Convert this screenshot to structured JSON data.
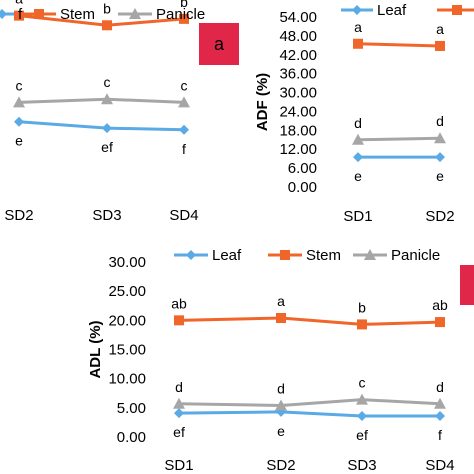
{
  "colors": {
    "leaf": "#5aaae6",
    "stem": "#f0652a",
    "panicle": "#a6a6a6",
    "badge": "#e0274a"
  },
  "chart_data": [
    {
      "type": "line",
      "panel": "top-left (cropped)",
      "categories": [
        "SD2",
        "SD3",
        "SD4"
      ],
      "legend": [
        "f",
        "Stem",
        "Panicle"
      ],
      "ylim": [
        0,
        56
      ],
      "badge": "a",
      "series": [
        {
          "name": "Stem",
          "values": [
            53,
            50,
            52
          ],
          "labels": [
            "a",
            "b",
            "b"
          ]
        },
        {
          "name": "Panicle",
          "values": [
            26,
            27,
            26
          ],
          "labels": [
            "c",
            "c",
            "c"
          ]
        },
        {
          "name": "Leaf",
          "values": [
            20,
            18,
            17.5
          ],
          "labels": [
            "e",
            "ef",
            "f"
          ]
        }
      ]
    },
    {
      "type": "line",
      "panel": "top-right (cropped)",
      "categories": [
        "SD1",
        "SD2"
      ],
      "legend": [
        "Leaf",
        ""
      ],
      "ylabel": "ADF (%)",
      "ylim": [
        0,
        54
      ],
      "yticks": [
        "0.00",
        "6.00",
        "12.00",
        "18.00",
        "24.00",
        "30.00",
        "36.00",
        "42.00",
        "48.00",
        "54.00"
      ],
      "series": [
        {
          "name": "Stem",
          "values": [
            45.5,
            44.8
          ],
          "labels": [
            "a",
            "a"
          ]
        },
        {
          "name": "Panicle",
          "values": [
            15,
            15.5
          ],
          "labels": [
            "d",
            "d"
          ]
        },
        {
          "name": "Leaf",
          "values": [
            9.5,
            9.5
          ],
          "labels": [
            "e",
            "e"
          ]
        }
      ]
    },
    {
      "type": "line",
      "panel": "bottom",
      "categories": [
        "SD1",
        "SD2",
        "SD3",
        "SD4"
      ],
      "legend": [
        "Leaf",
        "Stem",
        "Panicle"
      ],
      "ylabel": "ADL (%)",
      "ylim": [
        0,
        30
      ],
      "yticks": [
        "0.00",
        "5.00",
        "10.00",
        "15.00",
        "20.00",
        "25.00",
        "30.00"
      ],
      "series": [
        {
          "name": "Leaf",
          "values": [
            4.1,
            4.3,
            3.6,
            3.6
          ],
          "labels": [
            "ef",
            "e",
            "ef",
            "f"
          ]
        },
        {
          "name": "Stem",
          "values": [
            20.0,
            20.4,
            19.3,
            19.7
          ],
          "labels": [
            "ab",
            "a",
            "b",
            "ab"
          ]
        },
        {
          "name": "Panicle",
          "values": [
            5.7,
            5.4,
            6.4,
            5.7
          ],
          "labels": [
            "d",
            "d",
            "c",
            "d"
          ]
        }
      ]
    }
  ]
}
